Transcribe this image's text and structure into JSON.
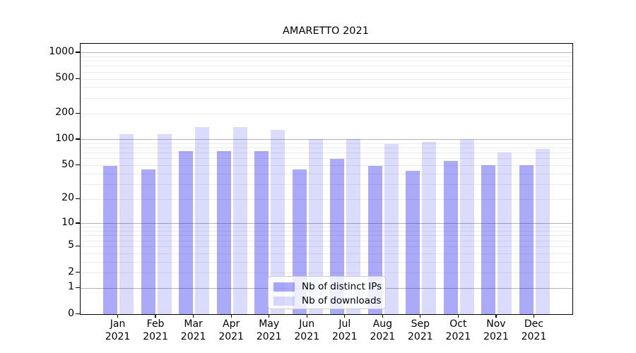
{
  "chart_data": {
    "type": "bar",
    "title": "AMARETTO 2021",
    "categories": [
      "Jan",
      "Feb",
      "Mar",
      "Apr",
      "May",
      "Jun",
      "Jul",
      "Aug",
      "Sep",
      "Oct",
      "Nov",
      "Dec"
    ],
    "year_label": "2021",
    "series": [
      {
        "name": "Nb of distinct IPs",
        "color": "rgba(25,25,240,0.37)",
        "values": [
          49,
          45,
          73,
          73,
          73,
          45,
          59,
          49,
          43,
          56,
          50,
          50
        ]
      },
      {
        "name": "Nb of downloads",
        "color": "rgba(25,25,240,0.155)",
        "values": [
          116,
          116,
          140,
          140,
          128,
          101,
          101,
          88,
          93,
          99,
          70,
          78
        ]
      }
    ],
    "yscale": "log1p",
    "ylim": [
      0,
      1260
    ],
    "yticks": [
      0,
      1,
      2,
      5,
      10,
      20,
      50,
      100,
      200,
      500,
      1000
    ],
    "ytick_labels": [
      "0",
      "1",
      "2",
      "5",
      "10",
      "20",
      "50",
      "100",
      "200",
      "500",
      "1000"
    ],
    "grid_major": [
      1,
      10,
      100,
      1000
    ],
    "grid_minor": [
      2,
      3,
      4,
      5,
      6,
      7,
      8,
      9,
      20,
      30,
      40,
      50,
      60,
      70,
      80,
      90,
      200,
      300,
      400,
      500,
      600,
      700,
      800,
      900
    ],
    "grid": "on",
    "legend_position": "lower center",
    "colors": {
      "major_grid": "#b3b3b3",
      "minor_grid": "#ececec",
      "axis": "#000000",
      "bar_dark": "rgba(25,25,240,0.37)",
      "bar_light": "rgba(25,25,240,0.155)"
    }
  }
}
